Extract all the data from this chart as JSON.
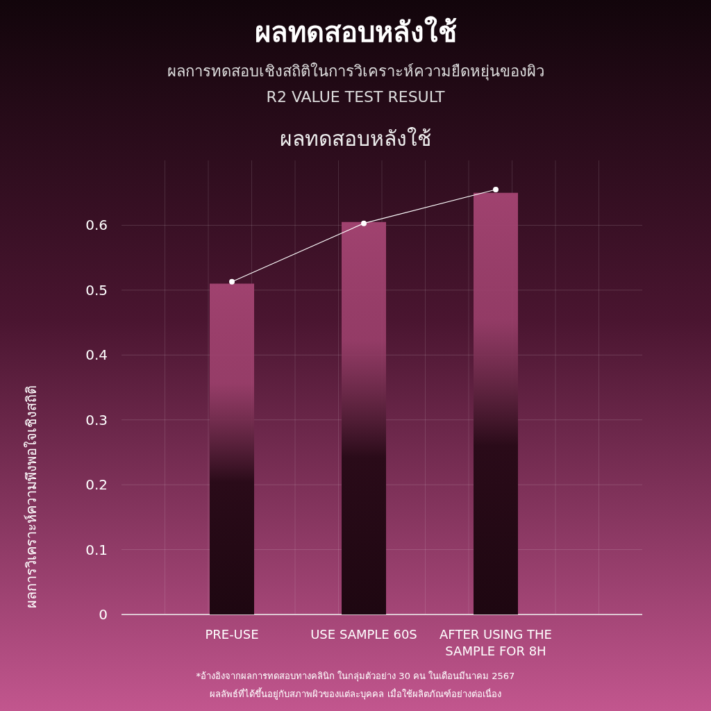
{
  "chart_data": {
    "type": "bar",
    "title": "ผลทดสอบหลังใช้",
    "subtitle": "ผลการทดสอบเชิงสถิติในการวิเคราะห์ความยืดหยุ่นของผิว",
    "annotations": [
      "R2 VALUE TEST RESULT",
      "ผลทดสอบหลังใช้",
      "*อ้างอิงจากผลการทดสอบทางคลินิก ในกลุ่มตัวอย่าง 30 คน ในเดือนมีนาคม 2567",
      "ผลลัพธ์ที่ได้ขึ้นอยู่กับสภาพผิวของแต่ละบุคคล เมื่อใช้ผลิตภัณฑ์อย่างต่อเนื่อง"
    ],
    "ylabel": "ผลการวิเคราะห์ความพึงพอใจเชิงสถิติ",
    "categories": [
      "PRE-USE",
      "USE SAMPLE 60S",
      "AFTER USING THE SAMPLE FOR 8H"
    ],
    "series": [
      {
        "color": "#a0426f",
        "values": [
          0.51,
          0.605,
          0.65
        ]
      },
      {
        "type": "line",
        "color": "#ffffff",
        "marker": "circle",
        "line_style": "solid",
        "values": [
          0.513,
          0.603,
          0.655
        ]
      }
    ],
    "ylim": [
      0,
      0.7
    ],
    "yticks": [
      0,
      0.1,
      0.2,
      0.3,
      0.4,
      0.5,
      0.6
    ],
    "grid": true
  }
}
